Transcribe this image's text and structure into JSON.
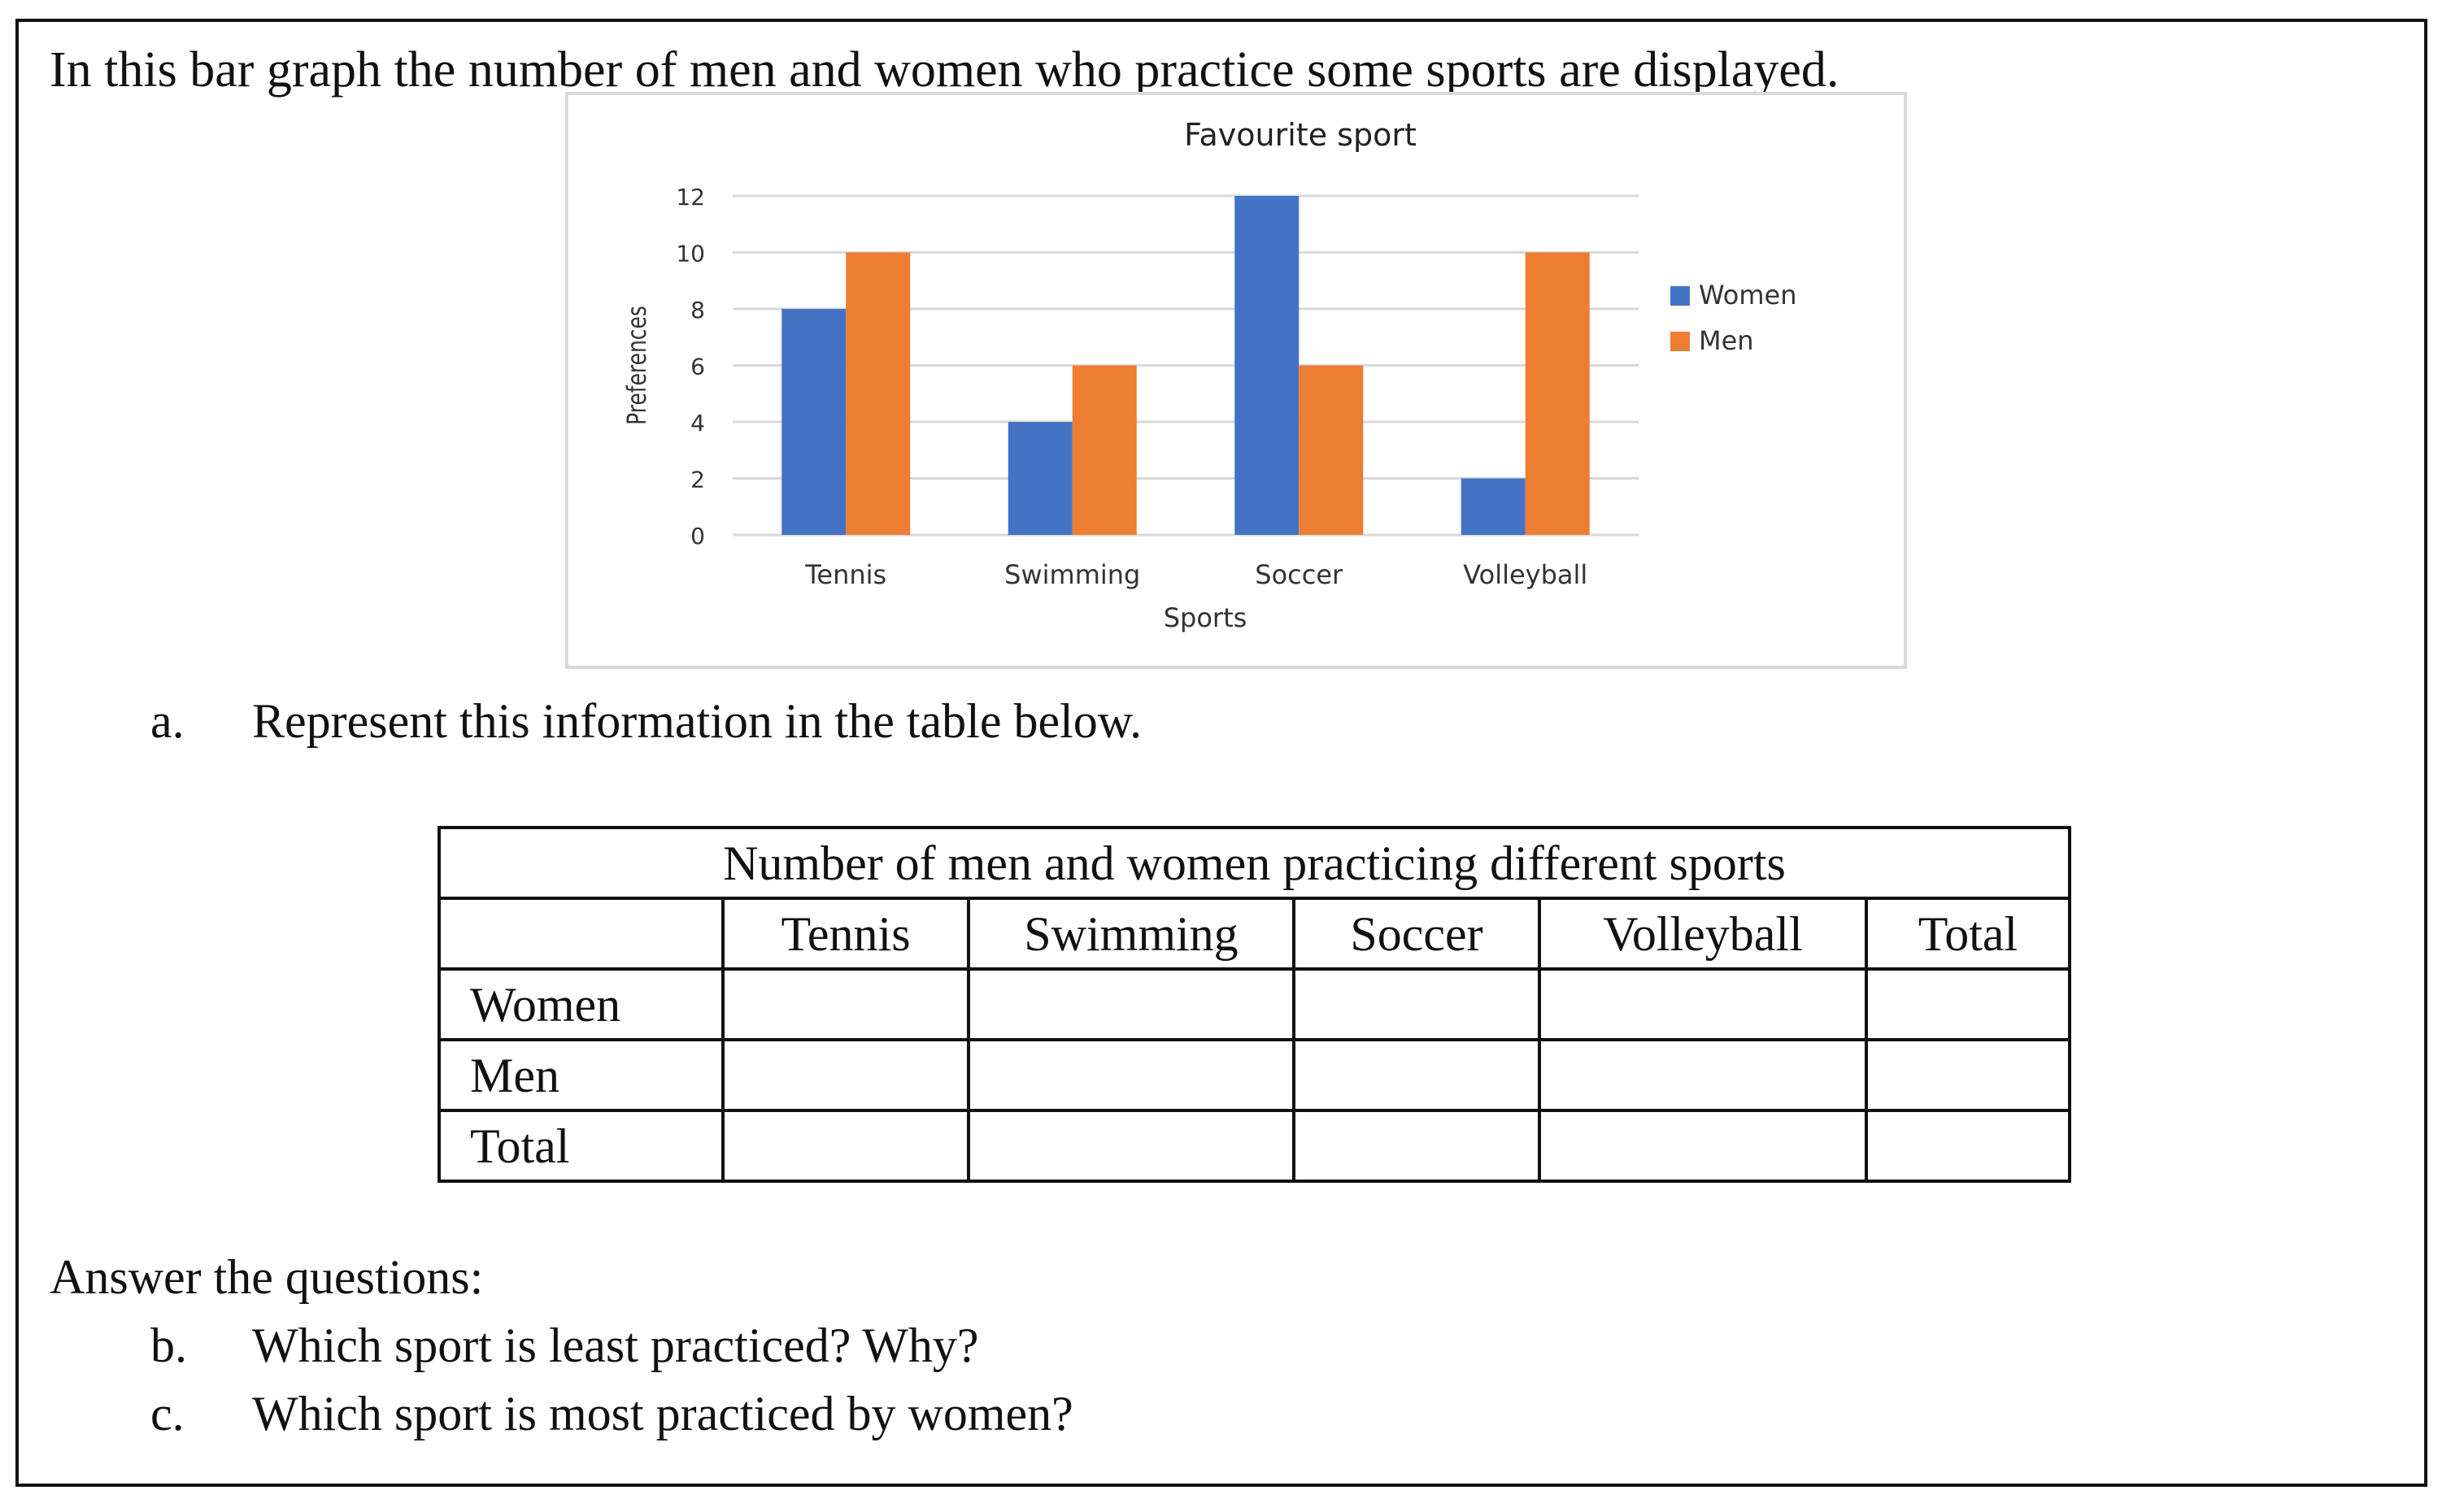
{
  "intro": "In this bar graph the number of men and women who practice some sports are displayed.",
  "item_a": {
    "marker": "a.",
    "text": "Represent this information in the table below."
  },
  "table": {
    "caption": "Number of men and women practicing different sports",
    "columns": [
      "Tennis",
      "Swimming",
      "Soccer",
      "Volleyball",
      "Total"
    ],
    "rows": [
      "Women",
      "Men",
      "Total"
    ]
  },
  "answer_heading": "Answer the questions:",
  "item_b": {
    "marker": "b.",
    "text": "Which sport is least practiced? Why?"
  },
  "item_c": {
    "marker": "c.",
    "text": "Which sport is most practiced by women?"
  },
  "chart_data": {
    "type": "bar",
    "title": "Favourite sport",
    "xlabel": "Sports",
    "ylabel": "Preferences",
    "categories": [
      "Tennis",
      "Swimming",
      "Soccer",
      "Volleyball"
    ],
    "series": [
      {
        "name": "Women",
        "values": [
          8,
          4,
          12,
          2
        ],
        "color": "#4472C4"
      },
      {
        "name": "Men",
        "values": [
          10,
          6,
          6,
          10
        ],
        "color": "#ED7D31"
      }
    ],
    "ylim": [
      0,
      12
    ],
    "yticks": [
      0,
      2,
      4,
      6,
      8,
      10,
      12
    ],
    "grid": true,
    "legend": "right"
  }
}
